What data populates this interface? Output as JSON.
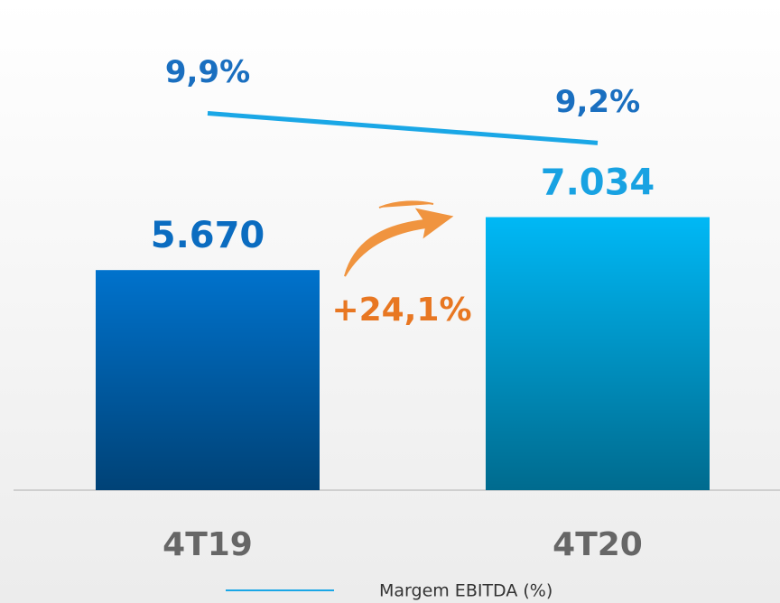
{
  "chart_data": {
    "type": "bar",
    "categories": [
      "4T19",
      "4T20"
    ],
    "ylim": [
      0,
      12000
    ],
    "y2lim": [
      1,
      12
    ],
    "annotation": "+24,1%",
    "series": [
      {
        "values": [
          5670,
          7034
        ],
        "value_labels": [
          "5.670",
          "7.034"
        ],
        "colors": [
          "#0072cc",
          "#00b8f5"
        ],
        "label_colors": [
          "#0b6cc0",
          "#18a2e2"
        ]
      },
      {
        "name": "Margem EBITDA (%)",
        "type": "line",
        "axis": "y2",
        "color": "#1aa7e6",
        "label_color": "#1a6fc0",
        "values": [
          9.9,
          9.2
        ],
        "value_labels": [
          "9,9%",
          "9,2%"
        ]
      }
    ]
  }
}
